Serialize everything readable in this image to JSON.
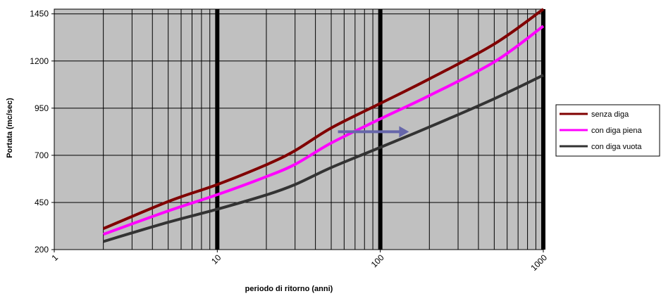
{
  "chart_data": {
    "type": "line",
    "xlabel": "periodo di ritorno (anni)",
    "ylabel": "Portata (mc/sec)",
    "x_scale": "log",
    "xlim": [
      1,
      1000
    ],
    "ylim": [
      200,
      1475
    ],
    "x_ticks": [
      1,
      10,
      100,
      1000
    ],
    "x_tick_labels": [
      "1",
      "10",
      "100",
      "1000"
    ],
    "y_ticks": [
      200,
      450,
      700,
      950,
      1200,
      1450
    ],
    "y_tick_labels": [
      "200",
      "450",
      "700",
      "950",
      "1200",
      "1450"
    ],
    "grid": true,
    "plot_background": "#c0c0c0",
    "legend_position": "right",
    "x": [
      2,
      5,
      10,
      20,
      30,
      50,
      100,
      200,
      500,
      1000
    ],
    "series": [
      {
        "name": "senza diga",
        "color": "#800000",
        "values": [
          311,
          455,
          545,
          650,
          725,
          845,
          975,
          1105,
          1290,
          1475
        ]
      },
      {
        "name": "con diga piena",
        "color": "#ff00ff",
        "values": [
          281,
          405,
          491,
          587,
          652,
          765,
          893,
          1017,
          1195,
          1385
        ]
      },
      {
        "name": "con diga vuota",
        "color": "#333333",
        "values": [
          243,
          345,
          414,
          490,
          545,
          635,
          742,
          850,
          1000,
          1125
        ]
      }
    ],
    "annotations": [
      {
        "type": "arrow",
        "color": "#6666aa",
        "from": {
          "x": 55,
          "y": 825
        },
        "to": {
          "x": 150,
          "y": 825
        }
      }
    ]
  }
}
